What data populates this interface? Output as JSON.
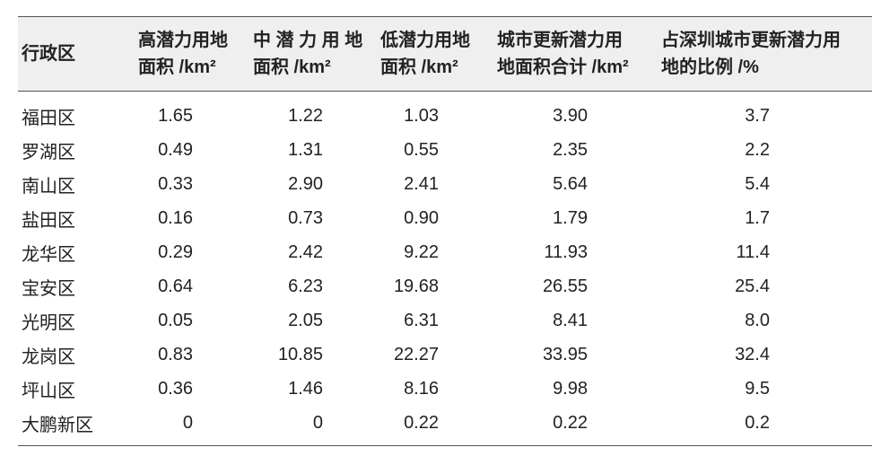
{
  "table": {
    "header": [
      [
        "行政区"
      ],
      [
        "高潜力用地",
        "面积 /km²"
      ],
      [
        "中 潜 力 用 地",
        "面积 /km²"
      ],
      [
        "低潜力用地",
        "面积 /km²"
      ],
      [
        "城市更新潜力用",
        "地面积合计 /km²"
      ],
      [
        "占深圳城市更新潜力用",
        "地的比例 /%"
      ]
    ],
    "rows": [
      [
        "福田区",
        "1.65",
        "1.22",
        "1.03",
        "3.90",
        "3.7"
      ],
      [
        "罗湖区",
        "0.49",
        "1.31",
        "0.55",
        "2.35",
        "2.2"
      ],
      [
        "南山区",
        "0.33",
        "2.90",
        "2.41",
        "5.64",
        "5.4"
      ],
      [
        "盐田区",
        "0.16",
        "0.73",
        "0.90",
        "1.79",
        "1.7"
      ],
      [
        "龙华区",
        "0.29",
        "2.42",
        "9.22",
        "11.93",
        "11.4"
      ],
      [
        "宝安区",
        "0.64",
        "6.23",
        "19.68",
        "26.55",
        "25.4"
      ],
      [
        "光明区",
        "0.05",
        "2.05",
        "6.31",
        "8.41",
        "8.0"
      ],
      [
        "龙岗区",
        "0.83",
        "10.85",
        "22.27",
        "33.95",
        "32.4"
      ],
      [
        "坪山区",
        "0.36",
        "1.46",
        "8.16",
        "9.98",
        "9.5"
      ],
      [
        "大鹏新区",
        "0",
        "0",
        "0.22",
        "0.22",
        "0.2"
      ]
    ]
  }
}
